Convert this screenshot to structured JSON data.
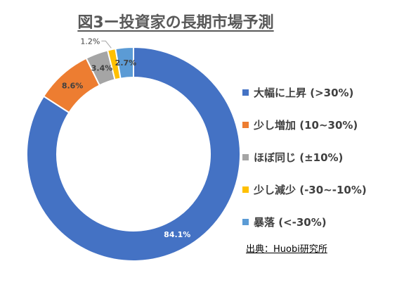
{
  "title": "図3ー投資家の長期市場予測",
  "source": "出典：Huobi研究所",
  "chart_data": {
    "type": "pie",
    "subtype": "donut",
    "title": "図3ー投資家の長期市場予測",
    "legend_position": "right",
    "slices": [
      {
        "label": "大幅に上昇 (>30%)",
        "value": 84.1,
        "value_label": "84.1%",
        "color": "#4472C4"
      },
      {
        "label": "少し増加 (10~30%)",
        "value": 8.6,
        "value_label": "8.6%",
        "color": "#ED7D31"
      },
      {
        "label": "ほぼ同じ (±10%)",
        "value": 3.4,
        "value_label": "3.4%",
        "color": "#A5A5A5"
      },
      {
        "label": "少し減少 (-30~-10%)",
        "value": 1.2,
        "value_label": "1.2%",
        "color": "#FFC000"
      },
      {
        "label": "暴落 (<-30%)",
        "value": 2.7,
        "value_label": "2.7%",
        "color": "#5B9BD5"
      }
    ]
  }
}
